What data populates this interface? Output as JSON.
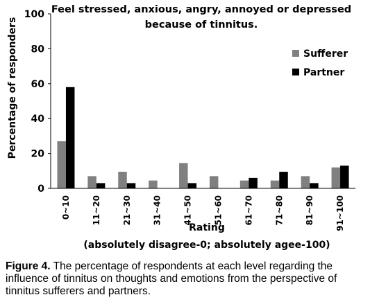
{
  "chart_data": {
    "type": "bar",
    "title_lines": [
      "Feel stressed, anxious, angry, annoyed or depressed",
      "because of tinnitus."
    ],
    "xlabel": "Rating",
    "xlabel_note": "(absolutely disagree-0; absolutely agee-100)",
    "ylabel": "Percentage of responders",
    "ylim": [
      0,
      100
    ],
    "yticks": [
      "0",
      "20",
      "40",
      "60",
      "80",
      "100"
    ],
    "grid": false,
    "legend_position": "right",
    "categories": [
      "0~10",
      "11~20",
      "21~30",
      "31~40",
      "41~50",
      "51~60",
      "61~70",
      "71~80",
      "81~90",
      "91~100"
    ],
    "series": [
      {
        "name": "Sufferer",
        "color": "#808080",
        "values": [
          27,
          7,
          9.5,
          4.5,
          14.5,
          7,
          4.5,
          4.5,
          7,
          12
        ]
      },
      {
        "name": "Partner",
        "color": "#000000",
        "values": [
          58,
          3,
          3,
          0,
          3,
          0,
          6,
          9.5,
          3,
          13
        ]
      }
    ]
  },
  "caption": {
    "label": "Figure 4.",
    "text": " The percentage of respondents at each level regarding the influence of tinnitus on thoughts and emotions from the perspective of tinnitus sufferers and partners."
  }
}
